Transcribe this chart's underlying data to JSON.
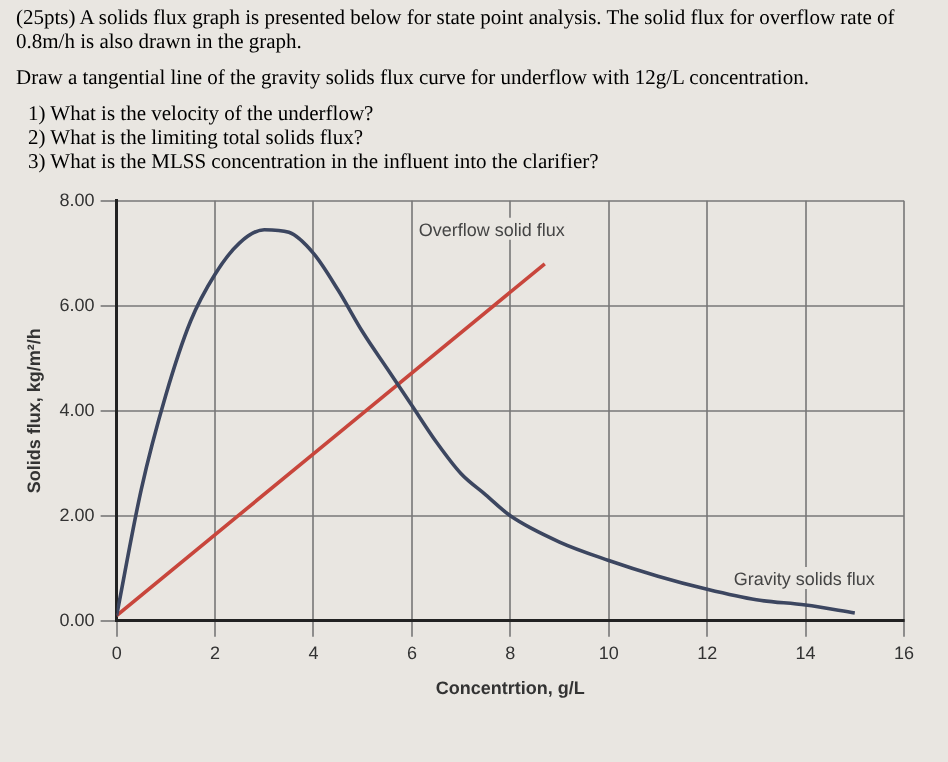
{
  "chart_data": {
    "type": "line",
    "title": "(25pts) A solids flux graph is presented below for state point analysis. The solid flux for overflow rate of 0.8m/h is also drawn in the graph.",
    "annotations": [
      "Draw a tangential line of the gravity solids flux curve for underflow with 12g/L concentration.",
      "1) What is the velocity of the underflow?",
      "2) What is the limiting total solids flux?",
      "3) What is the MLSS concentration in the influent into the clarifier?"
    ],
    "xlabel": "Concentrtion, g/L",
    "ylabel": "Solids flux, kg/m²/h",
    "series": [
      {
        "name": "Gravity solids flux",
        "color": "#3c4660",
        "x": [
          0,
          0.5,
          1,
          1.5,
          2,
          2.5,
          3,
          3.5,
          4,
          4.5,
          5,
          5.5,
          6,
          6.5,
          7,
          7.5,
          8,
          9,
          10,
          11,
          12,
          13,
          14,
          15
        ],
        "values": [
          0.1,
          2.5,
          4.3,
          5.7,
          6.6,
          7.2,
          7.45,
          7.4,
          7.0,
          6.3,
          5.5,
          4.8,
          4.1,
          3.4,
          2.8,
          2.4,
          2.0,
          1.5,
          1.15,
          0.85,
          0.6,
          0.4,
          0.3,
          0.15
        ]
      },
      {
        "name": "Overflow solid flux",
        "color": "#c8463c",
        "x": [
          0,
          8.7
        ],
        "values": [
          0.1,
          6.8
        ]
      }
    ],
    "xlim": [
      0,
      16
    ],
    "xticks": [
      0,
      2,
      4,
      6,
      8,
      10,
      12,
      14,
      16
    ],
    "ylim": [
      0,
      8
    ],
    "yticks": [
      {
        "value": 0,
        "label": "0.00"
      },
      {
        "value": 2,
        "label": "2.00"
      },
      {
        "value": 4,
        "label": "4.00"
      },
      {
        "value": 6,
        "label": "6.00"
      },
      {
        "value": 8,
        "label": "8.00"
      }
    ],
    "grid": true,
    "legend": false,
    "marker": "none",
    "line_style": "solid"
  }
}
